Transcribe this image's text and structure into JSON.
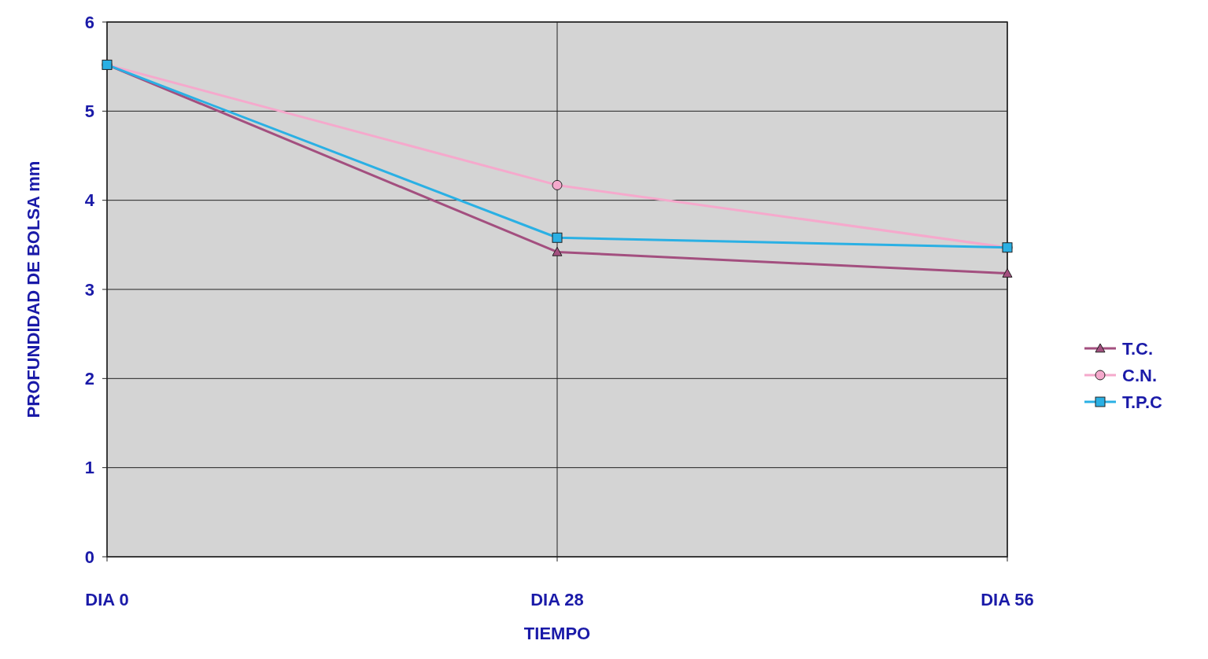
{
  "chart_data": {
    "type": "line",
    "xlabel": "TIEMPO",
    "ylabel": "PROFUNDIDAD DE BOLSA mm",
    "categories": [
      "DIA 0",
      "DIA 28",
      "DIA 56"
    ],
    "series": [
      {
        "name": "T.C.",
        "color": "#a34f7f",
        "marker": "triangle",
        "values": [
          5.52,
          3.42,
          3.18
        ]
      },
      {
        "name": "C.N.",
        "color": "#f5a9cc",
        "marker": "circle",
        "values": [
          5.52,
          4.17,
          3.47
        ]
      },
      {
        "name": "T.P.C",
        "color": "#2ab0e4",
        "marker": "square",
        "values": [
          5.52,
          3.58,
          3.47
        ]
      }
    ],
    "ylim": [
      0,
      6
    ],
    "yticks": [
      0,
      1,
      2,
      3,
      4,
      5,
      6
    ],
    "grid": true,
    "legend": "right"
  }
}
